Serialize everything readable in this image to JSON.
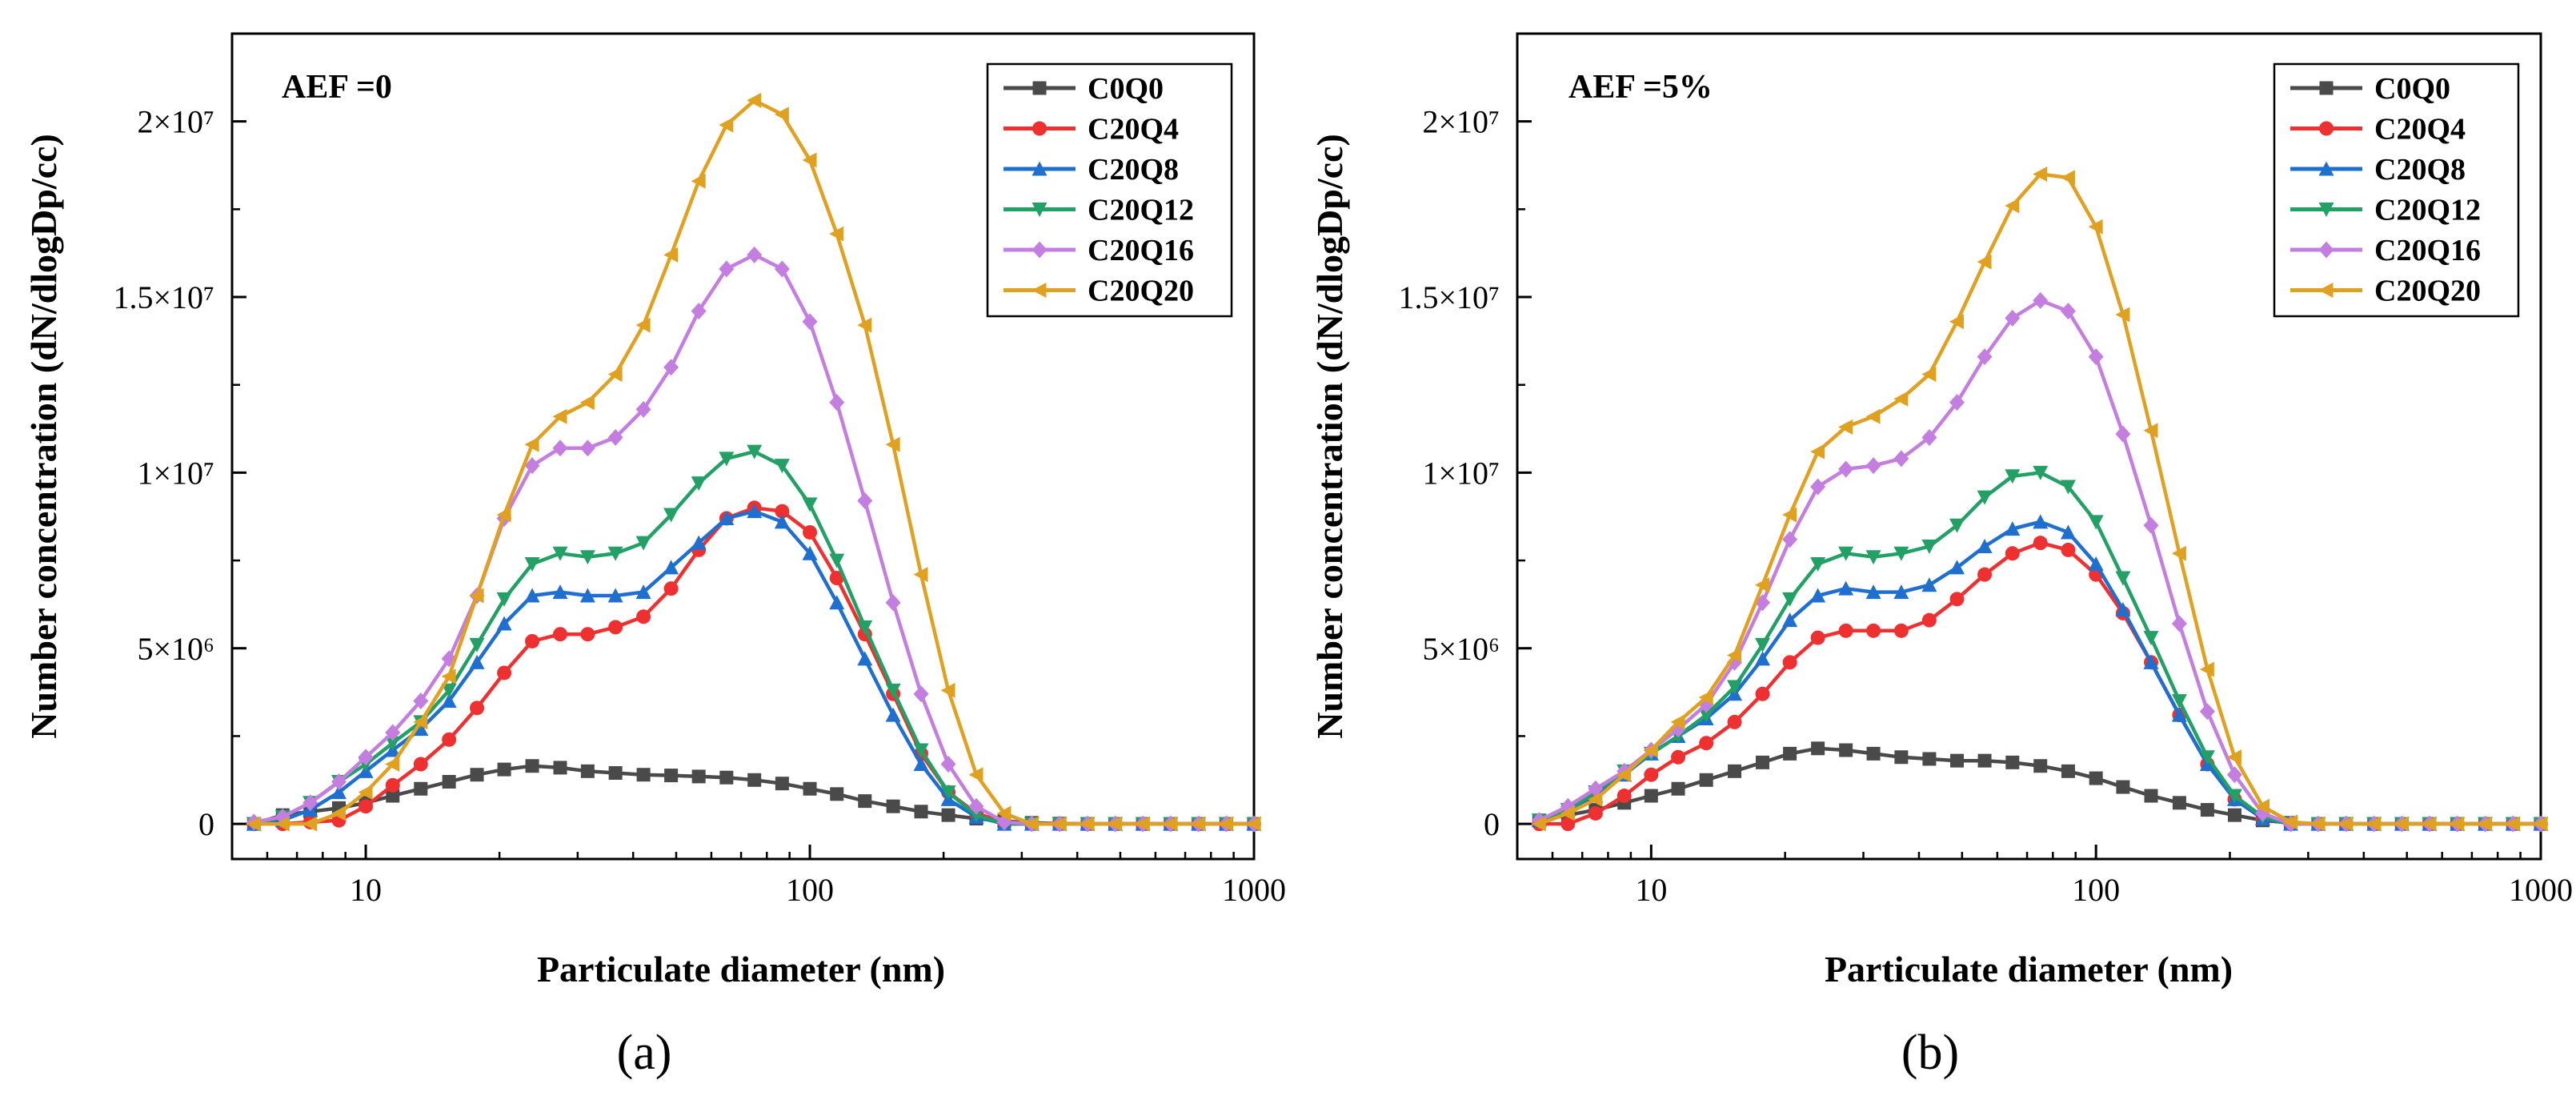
{
  "chart_data": [
    {
      "type": "line",
      "panel_label": "(a)",
      "annotation": "AEF =0",
      "xlabel": "Particulate diameter (nm)",
      "ylabel": "Number concentration (dN/dlogDp/cc)",
      "xscale": "log",
      "xlim": [
        5,
        1000
      ],
      "ylim": [
        -1000000,
        22500000
      ],
      "xticks": [
        10,
        100,
        1000
      ],
      "xtick_labels": [
        "10",
        "100",
        "1000"
      ],
      "yticks": [
        0,
        5000000,
        10000000,
        15000000,
        20000000
      ],
      "ytick_labels": [
        "0",
        "5×10⁶",
        "1×10⁷",
        "1.5×10⁷",
        "2×10⁷"
      ],
      "legend_position": "top-right",
      "x": [
        5.6,
        6.5,
        7.5,
        8.7,
        10.0,
        11.5,
        13.3,
        15.4,
        17.8,
        20.5,
        23.7,
        27.4,
        31.6,
        36.5,
        42.2,
        48.7,
        56.2,
        64.9,
        75.0,
        86.6,
        100,
        115,
        133,
        154,
        178,
        205,
        237,
        274,
        316,
        365,
        422,
        487,
        562,
        649,
        750,
        866,
        1000
      ],
      "series": [
        {
          "name": "C0Q0",
          "color": "#4a4a4a",
          "marker": "square",
          "values": [
            0,
            250000,
            350000,
            450000,
            600000,
            800000,
            1000000,
            1200000,
            1400000,
            1550000,
            1650000,
            1600000,
            1500000,
            1450000,
            1400000,
            1380000,
            1350000,
            1320000,
            1250000,
            1150000,
            1000000,
            850000,
            650000,
            500000,
            350000,
            250000,
            150000,
            80000,
            30000,
            10000,
            0,
            0,
            0,
            0,
            0,
            0,
            0
          ]
        },
        {
          "name": "C20Q4",
          "color": "#ee3030",
          "marker": "circle",
          "values": [
            0,
            0,
            50000,
            100000,
            500000,
            1100000,
            1700000,
            2400000,
            3300000,
            4300000,
            5200000,
            5400000,
            5400000,
            5600000,
            5900000,
            6700000,
            7800000,
            8700000,
            9000000,
            8900000,
            8300000,
            7000000,
            5400000,
            3700000,
            2000000,
            900000,
            300000,
            50000,
            0,
            0,
            0,
            0,
            0,
            0,
            0,
            0,
            0
          ]
        },
        {
          "name": "C20Q8",
          "color": "#1f6fd1",
          "marker": "triangle-up",
          "values": [
            0,
            100000,
            400000,
            900000,
            1500000,
            2100000,
            2700000,
            3500000,
            4600000,
            5700000,
            6500000,
            6600000,
            6500000,
            6500000,
            6600000,
            7300000,
            8000000,
            8700000,
            8900000,
            8600000,
            7700000,
            6300000,
            4700000,
            3100000,
            1700000,
            700000,
            200000,
            0,
            0,
            0,
            0,
            0,
            0,
            0,
            0,
            0,
            0
          ]
        },
        {
          "name": "C20Q12",
          "color": "#22a065",
          "marker": "triangle-down",
          "values": [
            0,
            200000,
            600000,
            1200000,
            1700000,
            2300000,
            2900000,
            3800000,
            5100000,
            6400000,
            7400000,
            7700000,
            7600000,
            7700000,
            8000000,
            8800000,
            9700000,
            10400000,
            10600000,
            10200000,
            9100000,
            7500000,
            5600000,
            3800000,
            2100000,
            900000,
            250000,
            0,
            0,
            0,
            0,
            0,
            0,
            0,
            0,
            0,
            0
          ]
        },
        {
          "name": "C20Q16",
          "color": "#c47ee0",
          "marker": "diamond",
          "values": [
            50000,
            200000,
            600000,
            1200000,
            1900000,
            2600000,
            3500000,
            4700000,
            6500000,
            8700000,
            10200000,
            10700000,
            10700000,
            11000000,
            11800000,
            13000000,
            14600000,
            15800000,
            16200000,
            15800000,
            14300000,
            12000000,
            9200000,
            6300000,
            3700000,
            1700000,
            500000,
            50000,
            0,
            0,
            0,
            0,
            0,
            0,
            0,
            0,
            0
          ]
        },
        {
          "name": "C20Q20",
          "color": "#e0a020",
          "marker": "triangle-left",
          "values": [
            0,
            0,
            0,
            300000,
            900000,
            1700000,
            2900000,
            4200000,
            6500000,
            8800000,
            10800000,
            11600000,
            12000000,
            12800000,
            14200000,
            16200000,
            18300000,
            19900000,
            20600000,
            20200000,
            18900000,
            16800000,
            14200000,
            10800000,
            7100000,
            3800000,
            1400000,
            300000,
            0,
            0,
            0,
            0,
            0,
            0,
            0,
            0,
            0
          ]
        }
      ]
    },
    {
      "type": "line",
      "panel_label": "(b)",
      "annotation": "AEF =5%",
      "xlabel": "Particulate diameter (nm)",
      "ylabel": "Number concentration (dN/dlogDp/cc)",
      "xscale": "log",
      "xlim": [
        5,
        1000
      ],
      "ylim": [
        -1000000,
        22500000
      ],
      "xticks": [
        10,
        100,
        1000
      ],
      "xtick_labels": [
        "10",
        "100",
        "1000"
      ],
      "yticks": [
        0,
        5000000,
        10000000,
        15000000,
        20000000
      ],
      "ytick_labels": [
        "0",
        "5×10⁶",
        "1×10⁷",
        "1.5×10⁷",
        "2×10⁷"
      ],
      "legend_position": "top-right",
      "x": [
        5.6,
        6.5,
        7.5,
        8.7,
        10.0,
        11.5,
        13.3,
        15.4,
        17.8,
        20.5,
        23.7,
        27.4,
        31.6,
        36.5,
        42.2,
        48.7,
        56.2,
        64.9,
        75.0,
        86.6,
        100,
        115,
        133,
        154,
        178,
        205,
        237,
        274,
        316,
        365,
        422,
        487,
        562,
        649,
        750,
        866,
        1000
      ],
      "series": [
        {
          "name": "C0Q0",
          "color": "#4a4a4a",
          "marker": "square",
          "values": [
            100000,
            250000,
            400000,
            600000,
            800000,
            1000000,
            1250000,
            1500000,
            1750000,
            2000000,
            2150000,
            2100000,
            2000000,
            1900000,
            1850000,
            1800000,
            1800000,
            1750000,
            1650000,
            1500000,
            1300000,
            1050000,
            800000,
            600000,
            400000,
            250000,
            100000,
            30000,
            0,
            0,
            0,
            0,
            0,
            0,
            0,
            0,
            0
          ]
        },
        {
          "name": "C20Q4",
          "color": "#ee3030",
          "marker": "circle",
          "values": [
            0,
            0,
            300000,
            800000,
            1400000,
            1900000,
            2300000,
            2900000,
            3700000,
            4600000,
            5300000,
            5500000,
            5500000,
            5500000,
            5800000,
            6400000,
            7100000,
            7700000,
            8000000,
            7800000,
            7100000,
            6000000,
            4600000,
            3100000,
            1700000,
            700000,
            150000,
            0,
            0,
            0,
            0,
            0,
            0,
            0,
            0,
            0,
            0
          ]
        },
        {
          "name": "C20Q8",
          "color": "#1f6fd1",
          "marker": "triangle-up",
          "values": [
            100000,
            400000,
            800000,
            1400000,
            2000000,
            2500000,
            3000000,
            3700000,
            4700000,
            5800000,
            6500000,
            6700000,
            6600000,
            6600000,
            6800000,
            7300000,
            7900000,
            8400000,
            8600000,
            8300000,
            7400000,
            6100000,
            4600000,
            3100000,
            1700000,
            700000,
            150000,
            0,
            0,
            0,
            0,
            0,
            0,
            0,
            0,
            0,
            0
          ]
        },
        {
          "name": "C20Q12",
          "color": "#22a065",
          "marker": "triangle-down",
          "values": [
            100000,
            400000,
            900000,
            1500000,
            2000000,
            2500000,
            3100000,
            3900000,
            5100000,
            6400000,
            7400000,
            7700000,
            7600000,
            7700000,
            7900000,
            8500000,
            9300000,
            9900000,
            10000000,
            9600000,
            8600000,
            7000000,
            5300000,
            3500000,
            1900000,
            800000,
            200000,
            0,
            0,
            0,
            0,
            0,
            0,
            0,
            0,
            0,
            0
          ]
        },
        {
          "name": "C20Q16",
          "color": "#c47ee0",
          "marker": "diamond",
          "values": [
            100000,
            500000,
            1000000,
            1500000,
            2100000,
            2700000,
            3400000,
            4600000,
            6300000,
            8100000,
            9600000,
            10100000,
            10200000,
            10400000,
            11000000,
            12000000,
            13300000,
            14400000,
            14900000,
            14600000,
            13300000,
            11100000,
            8500000,
            5700000,
            3200000,
            1400000,
            300000,
            0,
            0,
            0,
            0,
            0,
            0,
            0,
            0,
            0,
            0
          ]
        },
        {
          "name": "C20Q20",
          "color": "#e0a020",
          "marker": "triangle-left",
          "values": [
            0,
            300000,
            700000,
            1400000,
            2100000,
            2900000,
            3600000,
            4800000,
            6800000,
            8800000,
            10600000,
            11300000,
            11600000,
            12100000,
            12800000,
            14300000,
            16000000,
            17600000,
            18500000,
            18400000,
            17000000,
            14500000,
            11200000,
            7700000,
            4400000,
            1900000,
            500000,
            50000,
            0,
            0,
            0,
            0,
            0,
            0,
            0,
            0,
            0
          ]
        }
      ]
    }
  ]
}
